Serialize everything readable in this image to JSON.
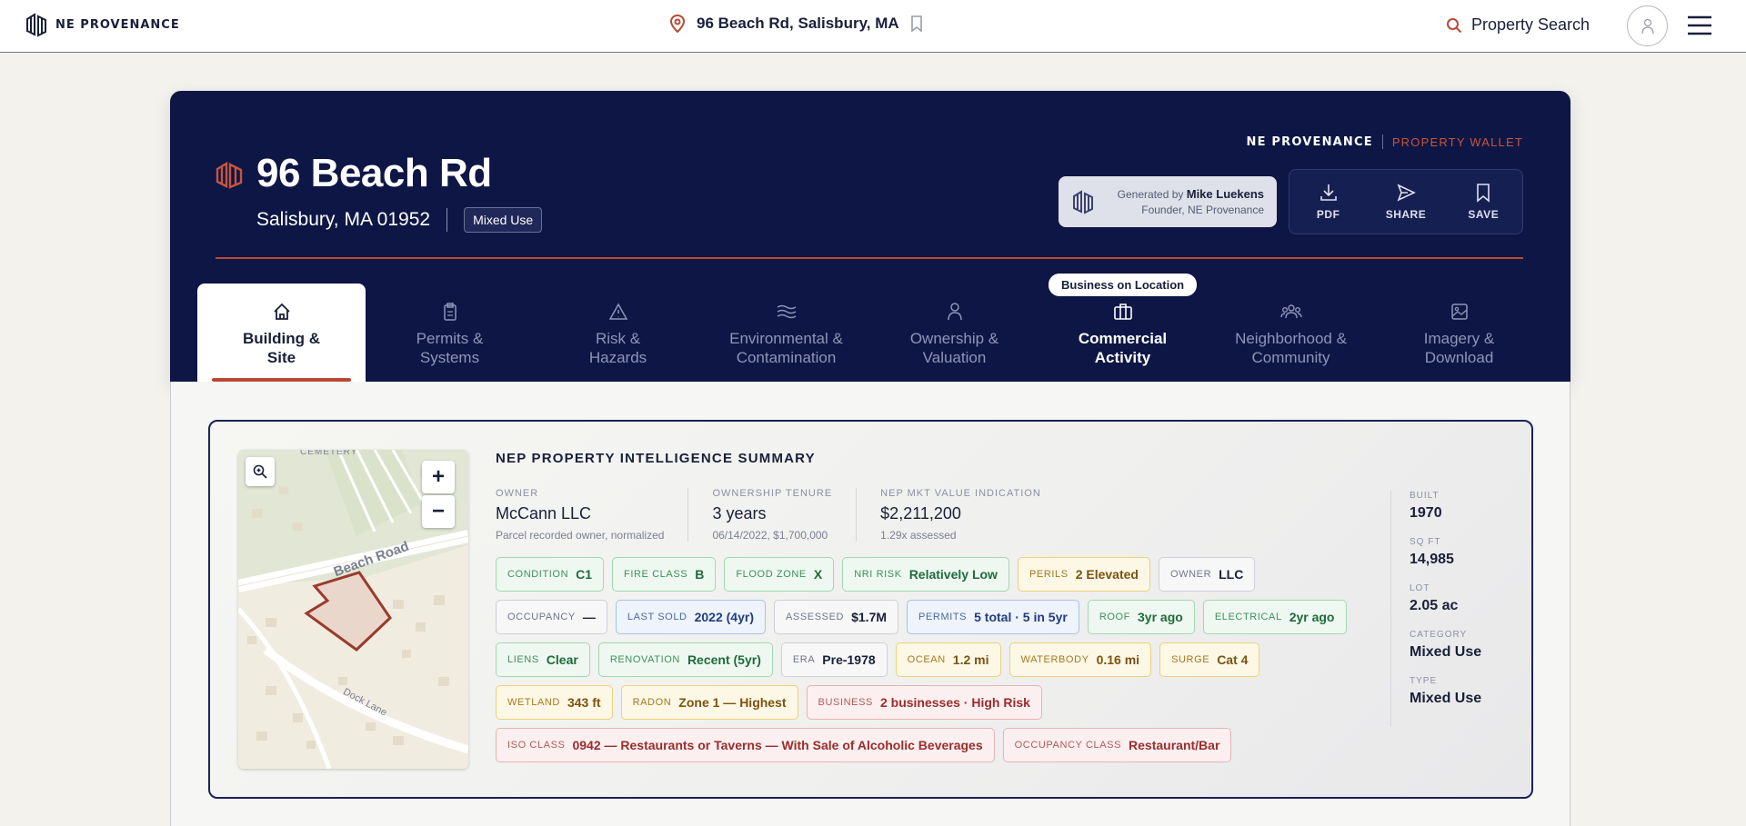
{
  "topbar": {
    "brand": "NE PROVENANCE",
    "address": "96 Beach Rd, Salisbury, MA",
    "search_label": "Property Search"
  },
  "hero": {
    "title": "96 Beach Rd",
    "city": "Salisbury, MA 01952",
    "badge": "Mixed Use",
    "wallet_brand": "NE PROVENANCE",
    "wallet_tag": "PROPERTY WALLET",
    "generated_prefix": "Generated by",
    "generated_name": "Mike Luekens",
    "generated_role": "Founder, NE Provenance",
    "actions": [
      {
        "label": "PDF",
        "icon": "download-icon"
      },
      {
        "label": "SHARE",
        "icon": "send-icon"
      },
      {
        "label": "SAVE",
        "icon": "bookmark-icon"
      }
    ]
  },
  "tabs": [
    {
      "line1": "Building &",
      "line2": "Site",
      "icon": "home-icon"
    },
    {
      "line1": "Permits &",
      "line2": "Systems",
      "icon": "clipboard-icon"
    },
    {
      "line1": "Risk &",
      "line2": "Hazards",
      "icon": "warning-icon"
    },
    {
      "line1": "Environmental &",
      "line2": "Contamination",
      "icon": "waves-icon"
    },
    {
      "line1": "Ownership &",
      "line2": "Valuation",
      "icon": "person-icon"
    },
    {
      "line1": "Commercial",
      "line2": "Activity",
      "icon": "briefcase-icon"
    },
    {
      "line1": "Neighborhood &",
      "line2": "Community",
      "icon": "people-icon"
    },
    {
      "line1": "Imagery &",
      "line2": "Download",
      "icon": "image-icon"
    }
  ],
  "callout": "Business on Location",
  "map": {
    "label_cemetery": "CEMETERY",
    "label_road1": "Beach Road",
    "label_road2": "Dock Lane",
    "zoom_in": "+",
    "zoom_out": "−"
  },
  "summary": {
    "title": "NEP PROPERTY INTELLIGENCE SUMMARY",
    "kpis": [
      {
        "label": "OWNER",
        "value": "McCann LLC",
        "note": "Parcel recorded owner, normalized"
      },
      {
        "label": "OWNERSHIP TENURE",
        "value": "3 years",
        "note": "06/14/2022, $1,700,000"
      },
      {
        "label": "NEP MKT VALUE INDICATION",
        "value": "$2,211,200",
        "note": "1.29x assessed"
      }
    ],
    "chips": [
      {
        "label": "CONDITION",
        "value": "C1",
        "tone": "green"
      },
      {
        "label": "FIRE CLASS",
        "value": "B",
        "tone": "green"
      },
      {
        "label": "FLOOD ZONE",
        "value": "X",
        "tone": "green"
      },
      {
        "label": "NRI RISK",
        "value": "Relatively Low",
        "tone": "green"
      },
      {
        "label": "PERILS",
        "value": "2 Elevated",
        "tone": "yellow"
      },
      {
        "label": "OWNER",
        "value": "LLC",
        "tone": "gray"
      },
      {
        "label": "OCCUPANCY",
        "value": "—",
        "tone": "gray"
      },
      {
        "label": "LAST SOLD",
        "value": "2022 (4yr)",
        "tone": "blue"
      },
      {
        "label": "ASSESSED",
        "value": "$1.7M",
        "tone": "gray"
      },
      {
        "label": "PERMITS",
        "value": "5 total · 5 in 5yr",
        "tone": "blue"
      },
      {
        "label": "ROOF",
        "value": "3yr ago",
        "tone": "green"
      },
      {
        "label": "ELECTRICAL",
        "value": "2yr ago",
        "tone": "green"
      },
      {
        "label": "LIENS",
        "value": "Clear",
        "tone": "green"
      },
      {
        "label": "RENOVATION",
        "value": "Recent (5yr)",
        "tone": "green"
      },
      {
        "label": "ERA",
        "value": "Pre-1978",
        "tone": "gray"
      },
      {
        "label": "OCEAN",
        "value": "1.2 mi",
        "tone": "yellow"
      },
      {
        "label": "WATERBODY",
        "value": "0.16 mi",
        "tone": "yellow"
      },
      {
        "label": "SURGE",
        "value": "Cat 4",
        "tone": "yellow"
      },
      {
        "label": "WETLAND",
        "value": "343 ft",
        "tone": "yellow"
      },
      {
        "label": "RADON",
        "value": "Zone 1 — Highest",
        "tone": "yellow"
      },
      {
        "label": "BUSINESS",
        "value": "2 businesses · High Risk",
        "tone": "red"
      },
      {
        "label": "ISO CLASS",
        "value": "0942 — Restaurants or Taverns — With Sale of Alcoholic Beverages",
        "tone": "red"
      },
      {
        "label": "OCCUPANCY CLASS",
        "value": "Restaurant/Bar",
        "tone": "red"
      }
    ]
  },
  "side": [
    {
      "label": "BUILT",
      "value": "1970"
    },
    {
      "label": "SQ FT",
      "value": "14,985"
    },
    {
      "label": "LOT",
      "value": "2.05 ac"
    },
    {
      "label": "CATEGORY",
      "value": "Mixed Use"
    },
    {
      "label": "TYPE",
      "value": "Mixed Use"
    }
  ],
  "colors": {
    "navy": "#0e1645",
    "accent": "#b84a34"
  }
}
